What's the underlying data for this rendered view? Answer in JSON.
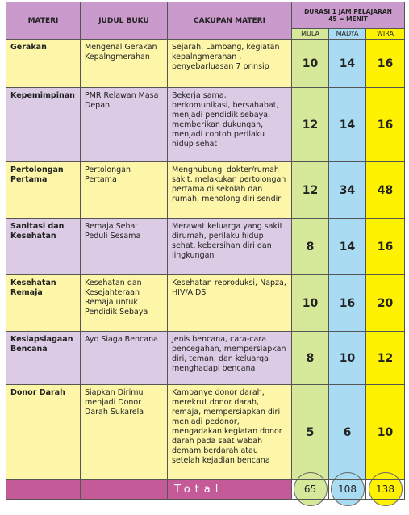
{
  "table": {
    "header": {
      "materi": "MATERI",
      "judul": "JUDUL BUKU",
      "cakupan": "CAKUPAN MATERI",
      "durasi": [
        "DURASI 1 JAM PELAJARAN",
        "45 = MENIT"
      ],
      "levels": [
        "MULA",
        "MADYA",
        "WIRA"
      ]
    },
    "rows": [
      [
        "Gerakan",
        "Mengenal Gerakan Kepalngmerahan",
        "Sejarah, Lambang, kegiatan kepalngmerahan , penyebarluasan 7 prinsip",
        10,
        14,
        16
      ],
      [
        "Kepemimpinan",
        "PMR Relawan Masa Depan",
        "Bekerja sama, berkomunikasi, bersahabat, menjadi pendidik sebaya, memberikan dukungan, menjadi contoh perilaku hidup sehat",
        12,
        14,
        16
      ],
      [
        "Pertolongan Pertama",
        "Pertolongan Pertama",
        "Menghubungi dokter/rumah sakit, melakukan pertolongan pertama di sekolah dan rumah, menolong diri sendiri",
        12,
        34,
        48
      ],
      [
        "Sanitasi dan Kesehatan",
        "Remaja Sehat Peduli Sesama",
        "Merawat keluarga yang sakit dirumah, perilaku hidup sehat, kebersihan diri dan lingkungan",
        8,
        14,
        16
      ],
      [
        "Kesehatan Remaja",
        "Kesehatan dan Kesejahteraan Remaja untuk Pendidik Sebaya",
        "Kesehatan reproduksi, Napza, HIV/AIDS",
        10,
        16,
        20
      ],
      [
        "Kesiapsiagaan Bencana",
        "Ayo Siaga Bencana",
        "Jenis bencana, cara-cara pencegahan, mempersiapkan diri, teman, dan keluarga menghadapi bencana",
        8,
        10,
        12
      ],
      [
        "Donor Darah",
        "Siapkan Dirimu menjadi Donor Darah Sukarela",
        "Kampanye donor darah, merekrut donor darah, remaja, mempersiapkan diri menjadi pedonor, mengadakan kegiatan donor darah pada saat wabah demam berdarah atau setelah kejadian bencana",
        5,
        6,
        10
      ]
    ],
    "total": {
      "label": "Total",
      "values": [
        65,
        108,
        138
      ]
    }
  }
}
